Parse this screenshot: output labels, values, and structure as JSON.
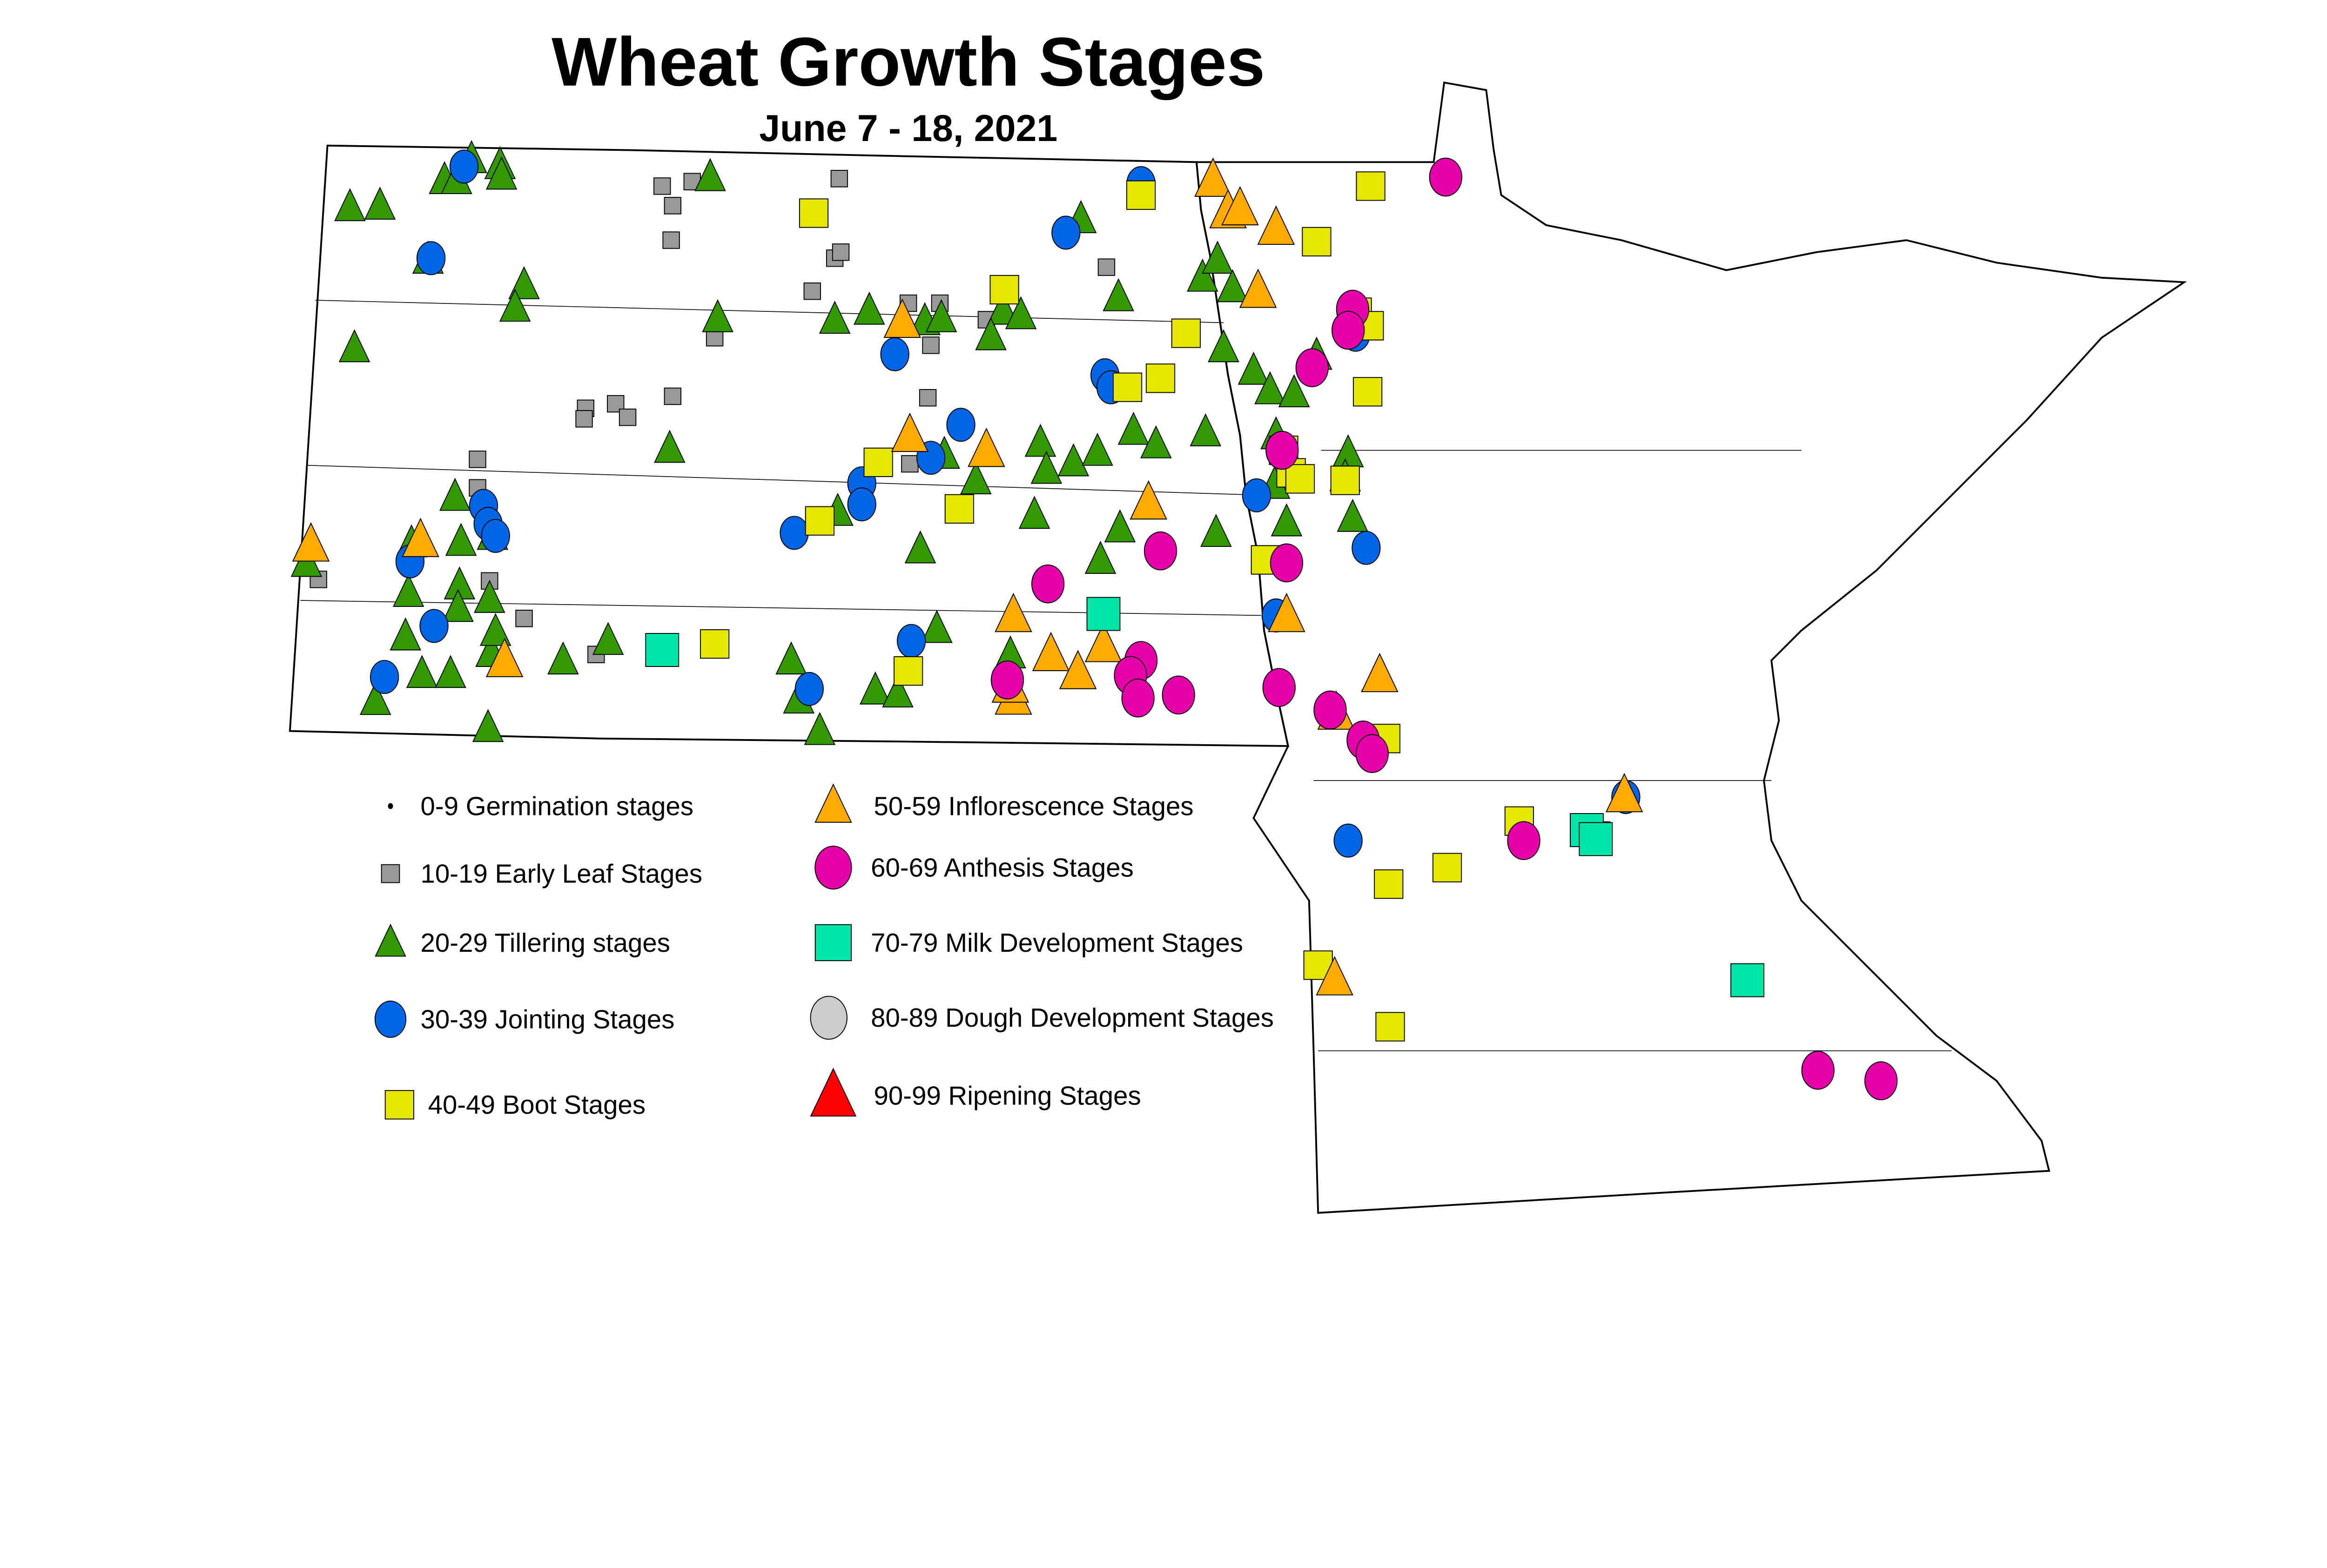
{
  "title": "Wheat Growth Stages",
  "subtitle": "June 7 - 18, 2021",
  "legend": [
    {
      "key": "germination",
      "label": "0-9 Germination stages",
      "shape": "dot",
      "color": "#000000"
    },
    {
      "key": "early_leaf",
      "label": "10-19 Early Leaf Stages",
      "shape": "square",
      "color": "#999999"
    },
    {
      "key": "tillering",
      "label": "20-29 Tillering stages",
      "shape": "triangle",
      "color": "#339900"
    },
    {
      "key": "jointing",
      "label": "30-39 Jointing Stages",
      "shape": "circle",
      "color": "#0066e6"
    },
    {
      "key": "boot",
      "label": "40-49 Boot Stages",
      "shape": "square",
      "color": "#e6e600"
    },
    {
      "key": "inflorescence",
      "label": "50-59 Inflorescence Stages",
      "shape": "triangle",
      "color": "#ffaa00"
    },
    {
      "key": "anthesis",
      "label": "60-69 Anthesis Stages",
      "shape": "circle",
      "color": "#e600a9"
    },
    {
      "key": "milk",
      "label": "70-79 Milk Development Stages",
      "shape": "square",
      "color": "#00e6a9"
    },
    {
      "key": "dough",
      "label": "80-89 Dough Development Stages",
      "shape": "circle",
      "color": "#cccccc"
    },
    {
      "key": "ripening",
      "label": "90-99 Ripening Stages",
      "shape": "triangle",
      "color": "#ff0000"
    }
  ]
}
